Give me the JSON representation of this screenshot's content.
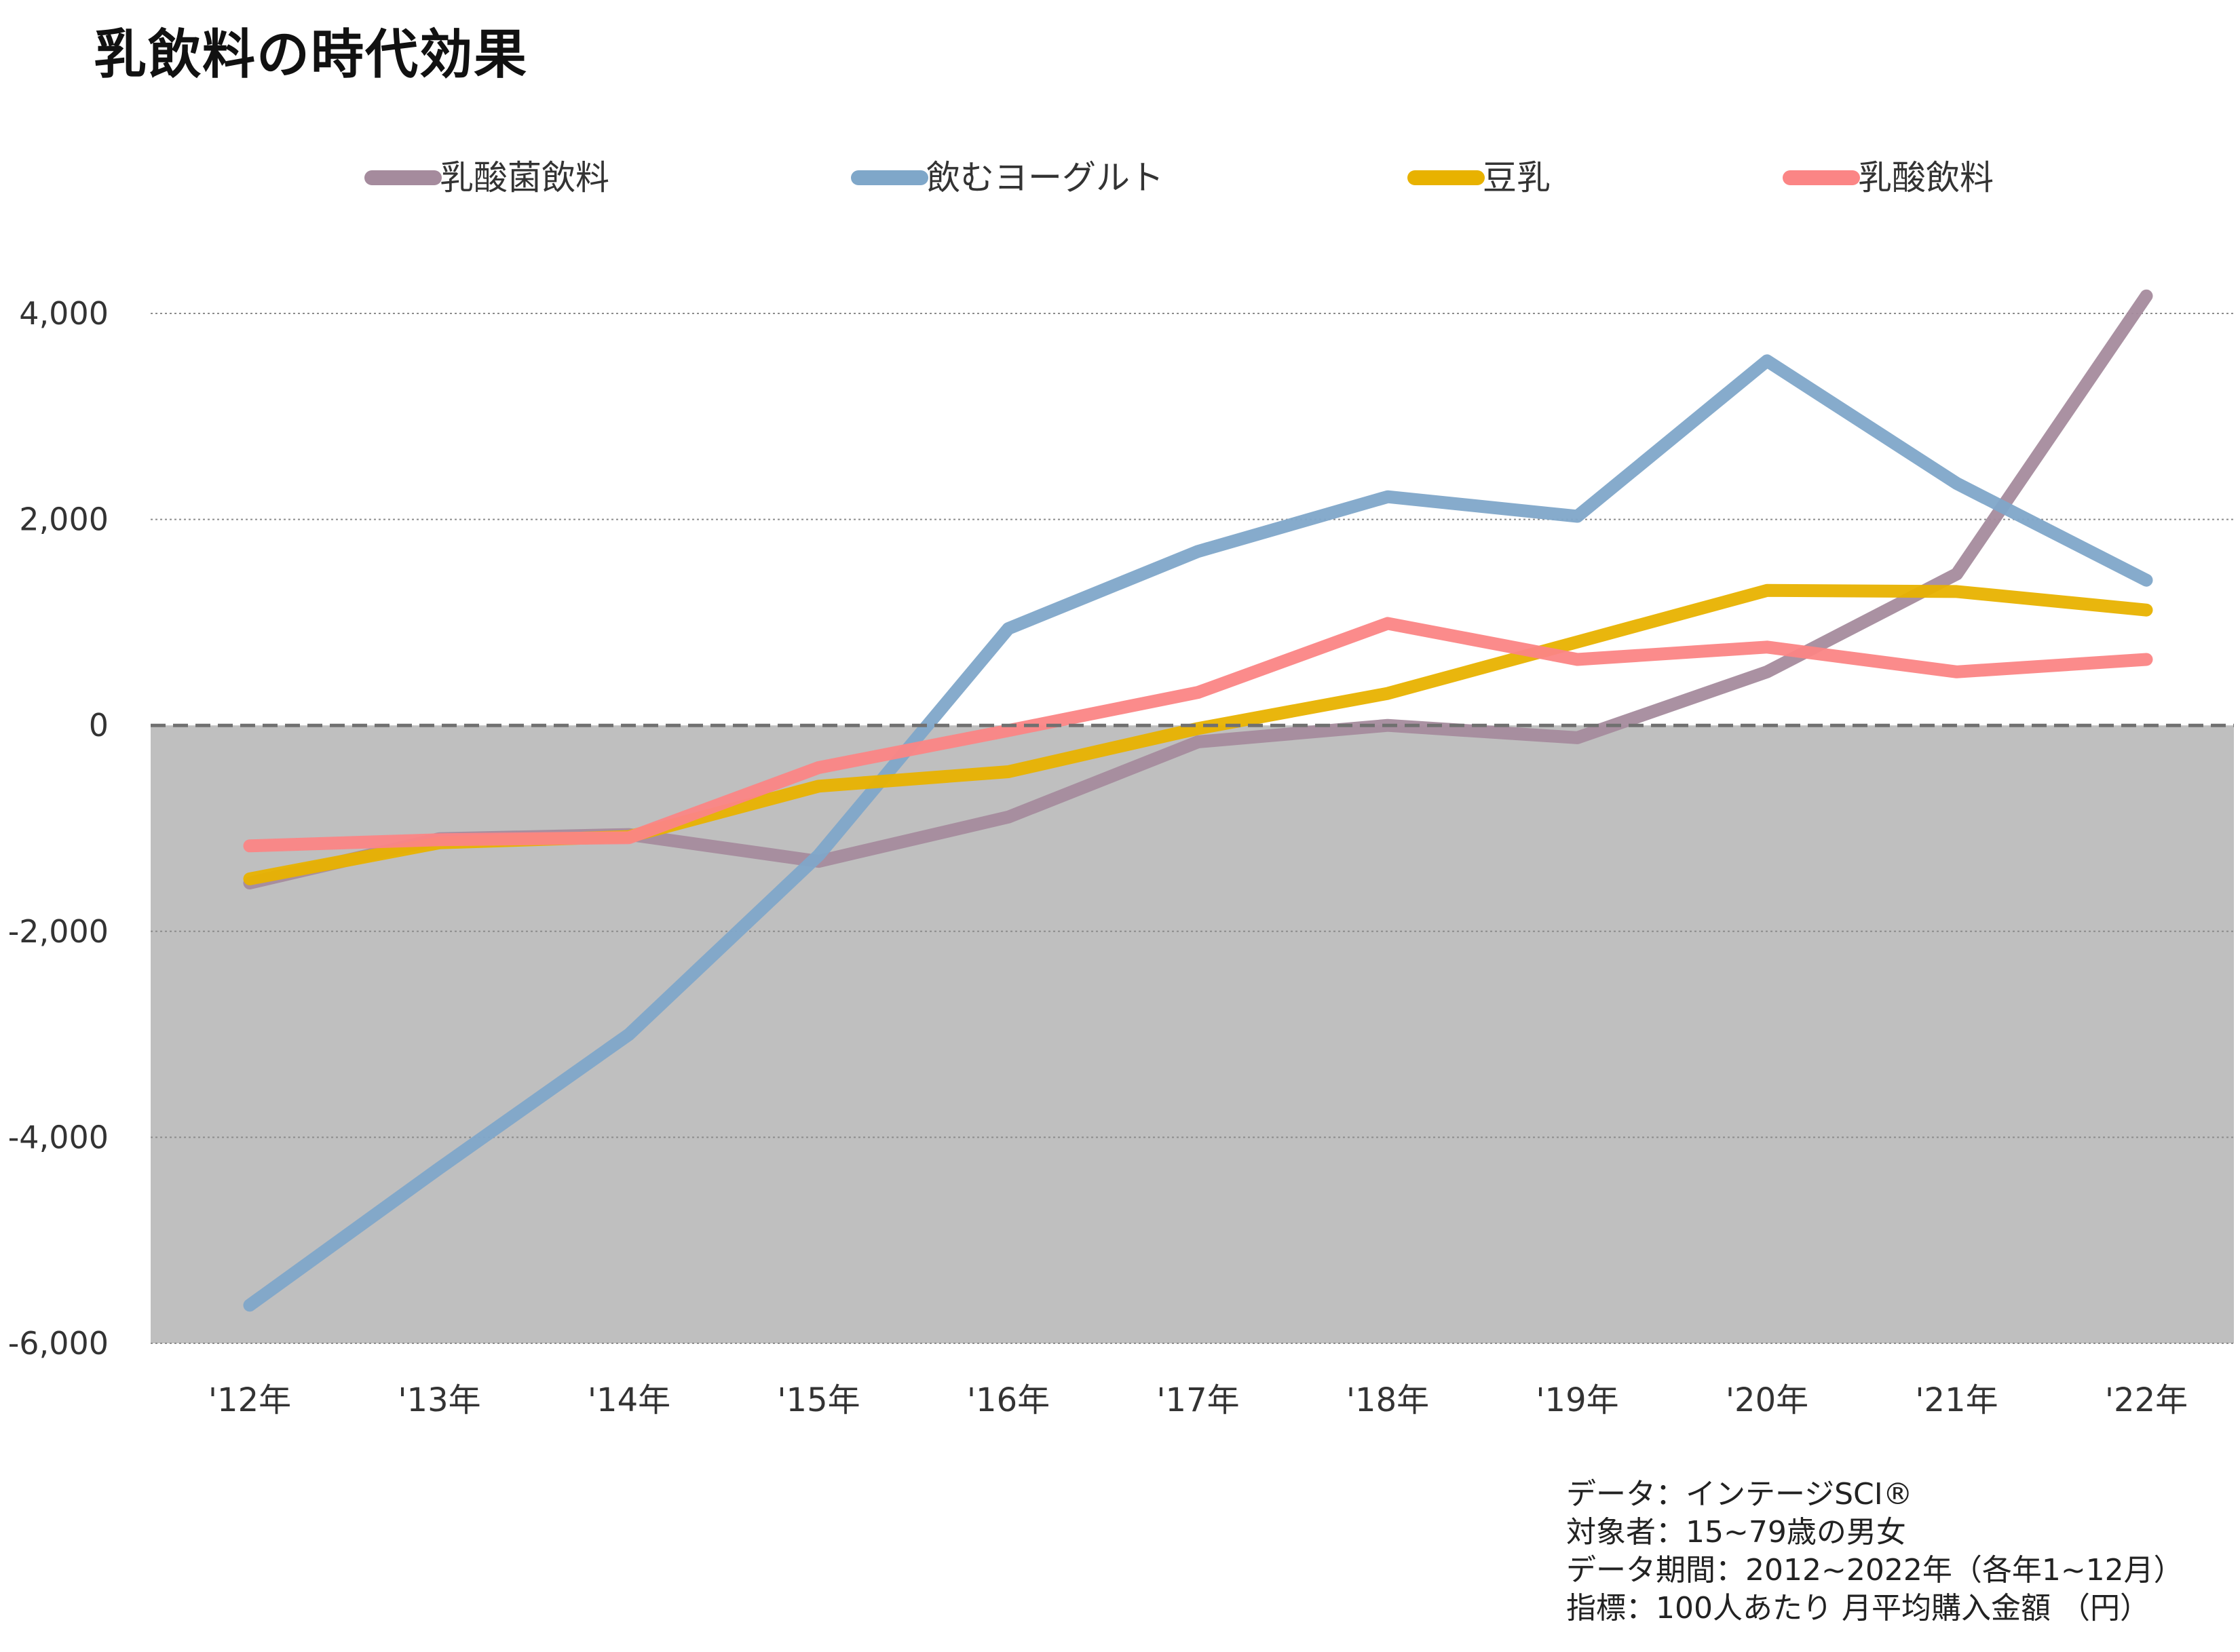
{
  "chart_data": {
    "type": "line",
    "title": "乳飲料の時代効果",
    "categories": [
      "'12年",
      "'13年",
      "'14年",
      "'15年",
      "'16年",
      "'17年",
      "'18年",
      "'19年",
      "'20年",
      "'21年",
      "'22年"
    ],
    "ylim": [
      -6000,
      4000
    ],
    "yticks": [
      4000,
      2000,
      0,
      -2000,
      -4000,
      -6000
    ],
    "ytick_labels": [
      "4,000",
      "2,000",
      "0",
      "-2,000",
      "-4,000",
      "-6,000"
    ],
    "grid": true,
    "legend_position": "top",
    "negative_region_shaded": true,
    "series": [
      {
        "name": "乳酸菌飲料",
        "color": "#a58b9d",
        "values": [
          -1530,
          -1100,
          -1060,
          -1320,
          -890,
          -160,
          0,
          -120,
          520,
          1470,
          4170
        ]
      },
      {
        "name": "飲むヨーグルト",
        "color": "#7fa7c9",
        "values": [
          -5630,
          -4300,
          -3000,
          -1260,
          940,
          1690,
          2220,
          2030,
          3540,
          2350,
          1410
        ]
      },
      {
        "name": "豆乳",
        "color": "#e8b200",
        "values": [
          -1490,
          -1140,
          -1080,
          -590,
          -450,
          -30,
          310,
          810,
          1310,
          1300,
          1120
        ]
      },
      {
        "name": "乳酸飲料",
        "color": "#fb8585",
        "values": [
          -1170,
          -1110,
          -1090,
          -410,
          -50,
          320,
          990,
          640,
          760,
          520,
          640
        ]
      }
    ]
  },
  "footnote": {
    "line1": "データ：インテージSCI®",
    "line2": "対象者：15~79歳の男女",
    "line3": "データ期間：2012~2022年（各年1~12月）",
    "line4": "指標：100人あたり 月平均購入金額 （円）"
  }
}
